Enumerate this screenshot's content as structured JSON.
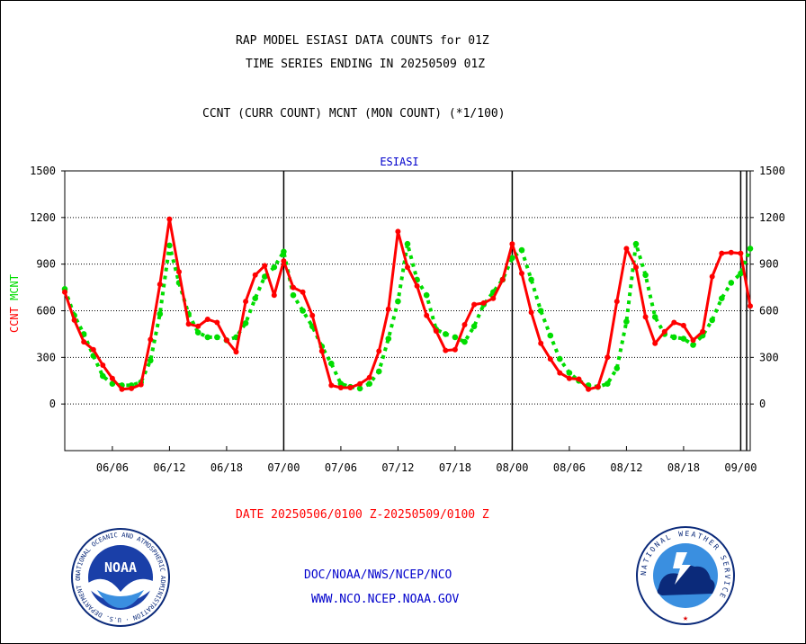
{
  "header": {
    "title_line1": "RAP MODEL ESIASI DATA COUNTS for 01Z",
    "title_line2": "TIME SERIES ENDING IN 20250509 01Z",
    "subtitle": "CCNT (CURR COUNT) MCNT (MON COUNT) (*1/100)"
  },
  "footer": {
    "date_range": "DATE 20250506/0100 Z-20250509/0100 Z",
    "link1": "DOC/NOAA/NWS/NCEP/NCO",
    "link2": "WWW.NCO.NCEP.NOAA.GOV"
  },
  "logos": {
    "noaa_text": "NOAA",
    "noaa_ring": "NATIONAL OCEANIC AND ATMOSPHERIC ADMINISTRATION · U.S. DEPARTMENT OF COMMERCE",
    "nws_ring": "NATIONAL WEATHER SERVICE"
  },
  "colors": {
    "ccnt": "#ff0000",
    "mcnt": "#00dd00",
    "axis": "#000000",
    "plot_title": "#0000cc"
  },
  "chart_data": {
    "type": "line",
    "title": "ESIASI",
    "ylabel_left": [
      "CCNT",
      "MCNT"
    ],
    "ylim": [
      -300,
      1500
    ],
    "yticks": [
      0,
      300,
      600,
      900,
      1200,
      1500
    ],
    "grid": true,
    "x_tick_labels": [
      "06/06",
      "06/12",
      "06/18",
      "07/00",
      "07/06",
      "07/12",
      "07/18",
      "08/00",
      "08/06",
      "08/12",
      "08/18",
      "09/00"
    ],
    "x_tick_hours": [
      5,
      11,
      17,
      23,
      29,
      35,
      41,
      47,
      53,
      59,
      65,
      71
    ],
    "day_boundaries_hours": [
      23,
      47,
      71
    ],
    "x_range_hours": [
      0,
      72
    ],
    "series": [
      {
        "name": "CCNT",
        "color": "#ff0000",
        "values": [
          720,
          540,
          400,
          350,
          250,
          165,
          95,
          100,
          125,
          415,
          770,
          1190,
          850,
          515,
          500,
          545,
          525,
          410,
          335,
          660,
          830,
          890,
          700,
          920,
          750,
          720,
          570,
          340,
          120,
          105,
          105,
          130,
          170,
          340,
          610,
          1110,
          880,
          760,
          570,
          470,
          345,
          350,
          510,
          640,
          650,
          680,
          800,
          1030,
          840,
          590,
          390,
          290,
          200,
          165,
          160,
          95,
          110,
          300,
          660,
          1000,
          880,
          560,
          390,
          465,
          525,
          505,
          410,
          465,
          820,
          970,
          975,
          970,
          630
        ]
      },
      {
        "name": "MCNT",
        "color": "#00dd00",
        "values": [
          740,
          570,
          450,
          310,
          180,
          130,
          120,
          120,
          140,
          280,
          580,
          1020,
          780,
          580,
          460,
          430,
          430,
          410,
          430,
          520,
          680,
          820,
          880,
          980,
          700,
          600,
          500,
          370,
          260,
          130,
          110,
          100,
          130,
          210,
          420,
          660,
          1030,
          800,
          700,
          480,
          450,
          430,
          400,
          500,
          640,
          720,
          800,
          940,
          990,
          800,
          600,
          440,
          290,
          200,
          150,
          120,
          110,
          130,
          230,
          530,
          1030,
          830,
          560,
          450,
          430,
          420,
          380,
          440,
          540,
          680,
          780,
          840,
          1000
        ]
      }
    ]
  }
}
